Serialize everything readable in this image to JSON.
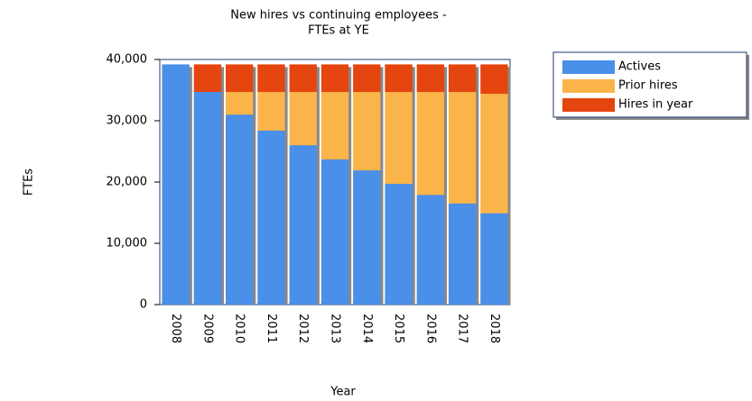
{
  "chart_data": {
    "type": "stacked_bar",
    "title": [
      "New hires vs continuing employees -",
      "FTEs at YE"
    ],
    "x_label": "Year",
    "y_label": "FTEs",
    "categories": [
      "2008",
      "2009",
      "2010",
      "2011",
      "2012",
      "2013",
      "2014",
      "2015",
      "2016",
      "2017",
      "2018"
    ],
    "series": [
      {
        "name": "Actives",
        "color": "#4a8fe8",
        "values": [
          39200,
          34700,
          31000,
          28400,
          26000,
          23700,
          21900,
          19700,
          17900,
          16500,
          14900
        ]
      },
      {
        "name": "Prior hires",
        "color": "#fbb44a",
        "values": [
          0,
          0,
          3700,
          6300,
          8700,
          11000,
          12800,
          15000,
          16800,
          18200,
          19500
        ]
      },
      {
        "name": "Hires in year",
        "color": "#e5450f",
        "values": [
          0,
          4500,
          4500,
          4500,
          4500,
          4500,
          4500,
          4500,
          4500,
          4500,
          4800
        ]
      }
    ],
    "ylim": [
      0,
      40000
    ],
    "yticks": [
      0,
      {
        "value": 10000,
        "label": "10,000"
      },
      {
        "value": 20000,
        "label": "20,000"
      },
      {
        "value": 30000,
        "label": "30,000"
      },
      {
        "value": 40000,
        "label": "40,000"
      }
    ],
    "legend": "right"
  }
}
